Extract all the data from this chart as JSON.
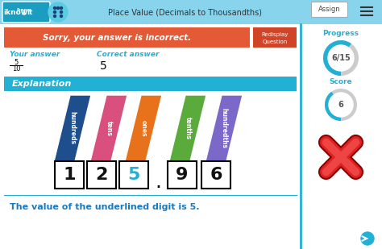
{
  "bg_color": "#c8e8f4",
  "header_color": "#88d4ec",
  "header_text": "Place Value (Decimals to Thousandths)",
  "error_banner_color": "#e55a36",
  "error_text": "Sorry, your answer is incorrect.",
  "your_answer_label": "Your answer",
  "correct_answer_label": "Correct answer",
  "correct_answer_value": "5",
  "explanation_bg": "#22b0d4",
  "explanation_text": "Explanation",
  "place_labels": [
    "hundreds",
    "tens",
    "ones",
    "tenths",
    "hundredths"
  ],
  "place_colors": [
    "#1e4f8c",
    "#d94f7e",
    "#e8721c",
    "#5aab3c",
    "#7b68c8"
  ],
  "digits": [
    "1",
    "2",
    "5",
    "9",
    "6"
  ],
  "highlighted_digit_idx": 2,
  "highlighted_digit_color": "#22b0d4",
  "normal_digit_color": "#111111",
  "bottom_text": "The value of the underlined digit is 5.",
  "bottom_text_color": "#1a7abf",
  "right_panel_bg": "#ffffff",
  "right_border_color": "#22b0d4",
  "progress_text": "Progress",
  "progress_value": "6/15",
  "score_text": "Score",
  "score_value": "6",
  "assign_text": "Assign",
  "accent_cyan": "#22b0d4",
  "main_bg": "#ffffff",
  "redisplay_text1": "Redisplay",
  "redisplay_text2": "Question",
  "redisplay_color": "#d04428"
}
